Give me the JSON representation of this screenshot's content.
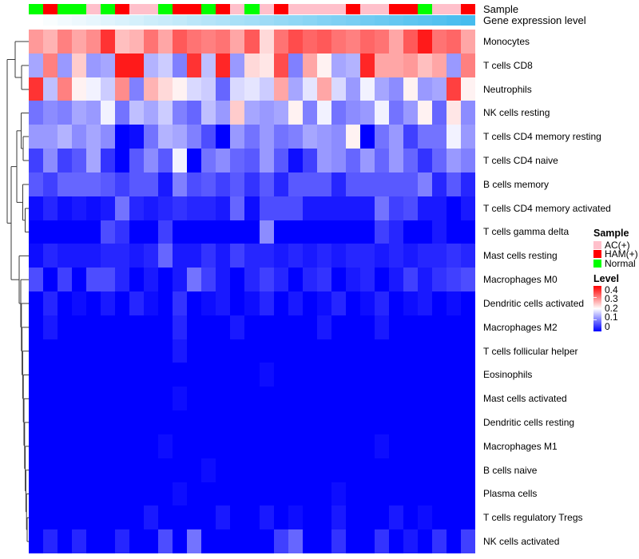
{
  "annotation_tracks": {
    "sample_label": "Sample",
    "gene_label": "Gene expression level",
    "sample_values": [
      "Normal",
      "HAM(+)",
      "Normal",
      "Normal",
      "AC(+)",
      "Normal",
      "HAM(+)",
      "AC(+)",
      "AC(+)",
      "Normal",
      "HAM(+)",
      "HAM(+)",
      "Normal",
      "HAM(+)",
      "AC(+)",
      "Normal",
      "AC(+)",
      "HAM(+)",
      "AC(+)",
      "AC(+)",
      "AC(+)",
      "AC(+)",
      "HAM(+)",
      "AC(+)",
      "AC(+)",
      "HAM(+)",
      "HAM(+)",
      "Normal",
      "AC(+)",
      "AC(+)",
      "HAM(+)"
    ],
    "gene_expression_values": [
      0,
      0.03,
      0.07,
      0.1,
      0.13,
      0.17,
      0.2,
      0.23,
      0.27,
      0.3,
      0.33,
      0.37,
      0.4,
      0.43,
      0.47,
      0.5,
      0.53,
      0.57,
      0.6,
      0.63,
      0.67,
      0.7,
      0.73,
      0.77,
      0.8,
      0.83,
      0.87,
      0.9,
      0.93,
      0.97,
      1
    ]
  },
  "legend": {
    "sample_title": "Sample",
    "sample_items": [
      {
        "label": "AC(+)",
        "color": "#FFC0CB"
      },
      {
        "label": "HAM(+)",
        "color": "#FF0000"
      },
      {
        "label": "Normal",
        "color": "#00FF00"
      }
    ],
    "level_title": "Level",
    "level_ticks": [
      "0.4",
      "0.3",
      "0.2",
      "0.1",
      "0"
    ]
  },
  "colors": {
    "heatmap_low": "#0000FF",
    "heatmap_mid": "#FFFFFF",
    "heatmap_high": "#FF0000",
    "gene_track_low": "#FFFFFF",
    "gene_track_high": "#46BCEE",
    "sample_ac": "#FFC0CB",
    "sample_ham": "#FF0000",
    "sample_normal": "#00FF00"
  },
  "chart_data": {
    "type": "heatmap",
    "title": "",
    "value_range": [
      0,
      0.4
    ],
    "colormap": "blue-white-red",
    "legend_position": "right",
    "columns_count": 31,
    "rows": [
      "Monocytes",
      "T cells CD8",
      "Neutrophils",
      "NK cells resting",
      "T cells CD4 memory resting",
      "T cells CD4 naive",
      "B cells memory",
      "T cells CD4 memory activated",
      "T cells gamma delta",
      "Mast cells resting",
      "Macrophages M0",
      "Dendritic cells activated",
      "Macrophages M2",
      "T cells follicular helper",
      "Eosinophils",
      "Mast cells activated",
      "Dendritic cells resting",
      "Macrophages M1",
      "B cells naive",
      "Plasma cells",
      "T cells regulatory  Tregs",
      "NK cells activated"
    ],
    "values": [
      [
        0.28,
        0.26,
        0.3,
        0.27,
        0.29,
        0.36,
        0.25,
        0.26,
        0.31,
        0.27,
        0.33,
        0.31,
        0.3,
        0.31,
        0.27,
        0.33,
        0.23,
        0.31,
        0.34,
        0.32,
        0.33,
        0.31,
        0.3,
        0.32,
        0.31,
        0.27,
        0.33,
        0.38,
        0.31,
        0.32,
        0.27
      ],
      [
        0.13,
        0.3,
        0.12,
        0.24,
        0.12,
        0.13,
        0.38,
        0.38,
        0.14,
        0.16,
        0.1,
        0.36,
        0.15,
        0.37,
        0.12,
        0.23,
        0.22,
        0.34,
        0.1,
        0.27,
        0.21,
        0.13,
        0.14,
        0.37,
        0.27,
        0.27,
        0.28,
        0.25,
        0.27,
        0.12,
        0.3
      ],
      [
        0.36,
        0.15,
        0.3,
        0.21,
        0.19,
        0.16,
        0.29,
        0.1,
        0.26,
        0.23,
        0.21,
        0.17,
        0.16,
        0.08,
        0.17,
        0.18,
        0.16,
        0.27,
        0.13,
        0.18,
        0.27,
        0.17,
        0.12,
        0.19,
        0.13,
        0.11,
        0.21,
        0.12,
        0.13,
        0.35,
        0.21
      ],
      [
        0.09,
        0.11,
        0.1,
        0.13,
        0.12,
        0.19,
        0.09,
        0.15,
        0.13,
        0.16,
        0.1,
        0.08,
        0.15,
        0.12,
        0.24,
        0.13,
        0.12,
        0.13,
        0.21,
        0.1,
        0.19,
        0.09,
        0.11,
        0.12,
        0.19,
        0.09,
        0.12,
        0.21,
        0.08,
        0.22,
        0.11
      ],
      [
        0.12,
        0.12,
        0.14,
        0.11,
        0.13,
        0.11,
        0,
        0.01,
        0.09,
        0.14,
        0.13,
        0.1,
        0.06,
        0,
        0.12,
        0.09,
        0.12,
        0.09,
        0.1,
        0.13,
        0.12,
        0.11,
        0.21,
        0,
        0.09,
        0.12,
        0.05,
        0.09,
        0.09,
        0.19,
        0.12
      ],
      [
        0.05,
        0.11,
        0.05,
        0.07,
        0.13,
        0.04,
        0,
        0.07,
        0.11,
        0.07,
        0.19,
        0,
        0.09,
        0.11,
        0.08,
        0.07,
        0.12,
        0.07,
        0.01,
        0.05,
        0.12,
        0.11,
        0.08,
        0.12,
        0.08,
        0.12,
        0.08,
        0.04,
        0.08,
        0.12,
        0.1
      ],
      [
        0.07,
        0.05,
        0.08,
        0.08,
        0.08,
        0.07,
        0.05,
        0.07,
        0.07,
        0.02,
        0.1,
        0.06,
        0.07,
        0.05,
        0.07,
        0.04,
        0.07,
        0.03,
        0.07,
        0.07,
        0.07,
        0.03,
        0.07,
        0.07,
        0.07,
        0.07,
        0.07,
        0.1,
        0.03,
        0.07,
        0.03
      ],
      [
        0.01,
        0.03,
        0.01,
        0.02,
        0.01,
        0.02,
        0.09,
        0.03,
        0.02,
        0.03,
        0.04,
        0.03,
        0.03,
        0.02,
        0.08,
        0.01,
        0.06,
        0.06,
        0.06,
        0.02,
        0.02,
        0.02,
        0.02,
        0.02,
        0.09,
        0.05,
        0.06,
        0.02,
        0.02,
        0,
        0.02
      ],
      [
        0,
        0,
        0,
        0,
        0,
        0.06,
        0.04,
        0,
        0,
        0.05,
        0,
        0,
        0,
        0,
        0,
        0,
        0.11,
        0,
        0,
        0,
        0,
        0,
        0,
        0,
        0.05,
        0.03,
        0,
        0,
        0.02,
        0,
        0
      ],
      [
        0.01,
        0.03,
        0.02,
        0.02,
        0.02,
        0.03,
        0.03,
        0.02,
        0.03,
        0.08,
        0.02,
        0.02,
        0.04,
        0.02,
        0.05,
        0.03,
        0.03,
        0.02,
        0.03,
        0.02,
        0.03,
        0.02,
        0.03,
        0.03,
        0.02,
        0.03,
        0.02,
        0.03,
        0.03,
        0.04,
        0.03
      ],
      [
        0.06,
        0,
        0.05,
        0,
        0.06,
        0.06,
        0.03,
        0,
        0.02,
        0,
        0.02,
        0.09,
        0.05,
        0.02,
        0,
        0.03,
        0.05,
        0.03,
        0,
        0.03,
        0.04,
        0,
        0.02,
        0.03,
        0,
        0.02,
        0.05,
        0.02,
        0.04,
        0.05,
        0.06
      ],
      [
        0,
        0.03,
        0,
        0.01,
        0,
        0.02,
        0,
        0.03,
        0.01,
        0,
        0.04,
        0,
        0.01,
        0.02,
        0,
        0.01,
        0.03,
        0,
        0.02,
        0,
        0.01,
        0.03,
        0,
        0.01,
        0.03,
        0,
        0.01,
        0.02,
        0,
        0.01,
        0
      ],
      [
        0,
        0.02,
        0,
        0,
        0,
        0,
        0,
        0,
        0,
        0,
        0.03,
        0,
        0,
        0,
        0.02,
        0,
        0,
        0,
        0,
        0,
        0.02,
        0,
        0,
        0,
        0.02,
        0,
        0,
        0,
        0,
        0,
        0
      ],
      [
        0,
        0,
        0,
        0,
        0,
        0,
        0,
        0,
        0,
        0,
        0.02,
        0,
        0,
        0,
        0,
        0,
        0,
        0,
        0,
        0,
        0,
        0,
        0,
        0,
        0,
        0,
        0,
        0,
        0,
        0,
        0
      ],
      [
        0,
        0,
        0,
        0,
        0,
        0,
        0,
        0,
        0,
        0,
        0,
        0,
        0,
        0,
        0,
        0,
        0.01,
        0,
        0,
        0,
        0,
        0,
        0,
        0,
        0,
        0,
        0,
        0,
        0,
        0,
        0
      ],
      [
        0,
        0,
        0,
        0,
        0,
        0,
        0,
        0,
        0,
        0,
        0.01,
        0,
        0,
        0,
        0,
        0,
        0,
        0,
        0,
        0,
        0,
        0,
        0,
        0,
        0,
        0,
        0,
        0,
        0,
        0,
        0
      ],
      [
        0,
        0,
        0,
        0,
        0,
        0,
        0,
        0,
        0,
        0,
        0,
        0,
        0,
        0,
        0,
        0,
        0,
        0,
        0,
        0,
        0,
        0,
        0,
        0,
        0,
        0,
        0,
        0,
        0,
        0,
        0
      ],
      [
        0,
        0,
        0,
        0,
        0,
        0,
        0,
        0,
        0,
        0.01,
        0,
        0,
        0,
        0,
        0,
        0,
        0,
        0,
        0,
        0,
        0,
        0,
        0,
        0,
        0.01,
        0,
        0,
        0,
        0,
        0,
        0
      ],
      [
        0,
        0,
        0,
        0,
        0,
        0,
        0,
        0,
        0,
        0,
        0,
        0,
        0.01,
        0,
        0,
        0,
        0,
        0,
        0,
        0,
        0,
        0,
        0,
        0,
        0,
        0,
        0,
        0,
        0,
        0,
        0
      ],
      [
        0,
        0,
        0,
        0,
        0,
        0,
        0,
        0,
        0,
        0,
        0.01,
        0,
        0,
        0,
        0,
        0,
        0,
        0,
        0,
        0,
        0,
        0.01,
        0,
        0,
        0,
        0,
        0,
        0,
        0,
        0,
        0
      ],
      [
        0,
        0,
        0,
        0,
        0,
        0,
        0,
        0,
        0.02,
        0,
        0,
        0,
        0,
        0.02,
        0,
        0,
        0.02,
        0,
        0.01,
        0,
        0,
        0.02,
        0,
        0,
        0,
        0.02,
        0,
        0.01,
        0,
        0,
        0
      ],
      [
        0,
        0.03,
        0,
        0.03,
        0,
        0,
        0.03,
        0,
        0,
        0.06,
        0,
        0.09,
        0,
        0,
        0,
        0,
        0,
        0.05,
        0.08,
        0,
        0,
        0.04,
        0,
        0,
        0.04,
        0,
        0.02,
        0,
        0.04,
        0,
        0.05
      ]
    ],
    "column_annotations": {
      "Sample": [
        "Normal",
        "HAM(+)",
        "Normal",
        "Normal",
        "AC(+)",
        "Normal",
        "HAM(+)",
        "AC(+)",
        "AC(+)",
        "Normal",
        "HAM(+)",
        "HAM(+)",
        "Normal",
        "HAM(+)",
        "AC(+)",
        "Normal",
        "AC(+)",
        "HAM(+)",
        "AC(+)",
        "AC(+)",
        "AC(+)",
        "AC(+)",
        "HAM(+)",
        "AC(+)",
        "AC(+)",
        "HAM(+)",
        "HAM(+)",
        "Normal",
        "AC(+)",
        "AC(+)",
        "HAM(+)"
      ],
      "Gene expression level": [
        0,
        0.03,
        0.07,
        0.1,
        0.13,
        0.17,
        0.2,
        0.23,
        0.27,
        0.3,
        0.33,
        0.37,
        0.4,
        0.43,
        0.47,
        0.5,
        0.53,
        0.57,
        0.6,
        0.63,
        0.67,
        0.7,
        0.73,
        0.77,
        0.8,
        0.83,
        0.87,
        0.9,
        0.93,
        0.97,
        1
      ]
    }
  }
}
